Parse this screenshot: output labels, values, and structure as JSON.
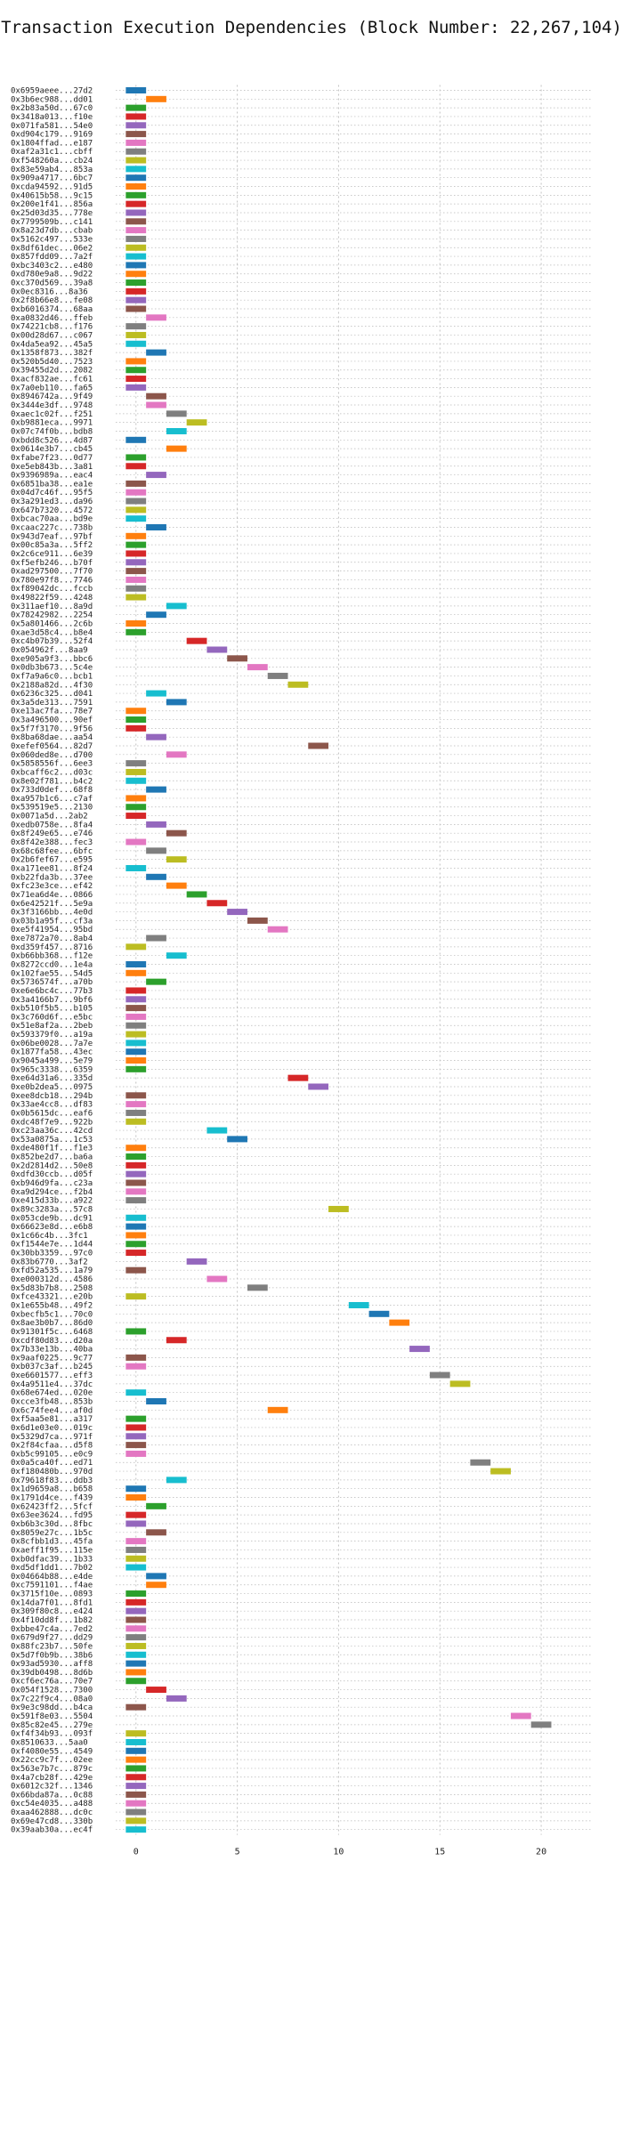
{
  "chart_data": {
    "type": "bar",
    "orientation": "horizontal",
    "title": "Transaction Execution Dependencies (Block Number: 22,267,104)",
    "xlabel": "",
    "ylabel": "",
    "xlim": [
      -1,
      22.5
    ],
    "xticks": [
      0,
      5,
      10,
      15,
      20
    ],
    "grid": true,
    "bar_width": 1,
    "colors": [
      "#1f77b4",
      "#ff7f0e",
      "#2ca02c",
      "#d62728",
      "#9467bd",
      "#8c564b",
      "#e377c2",
      "#7f7f7f",
      "#bcbd22",
      "#17becf"
    ],
    "rows": [
      {
        "tx": "0x6959aeee...27d2",
        "start": 0
      },
      {
        "tx": "0x3b6ec988...dd01",
        "start": 1
      },
      {
        "tx": "0x2b83a50d...67c0",
        "start": 0
      },
      {
        "tx": "0x3418a013...f10e",
        "start": 0
      },
      {
        "tx": "0x071fa581...54e0",
        "start": 0
      },
      {
        "tx": "0xd904c179...9169",
        "start": 0
      },
      {
        "tx": "0x1804ffad...e187",
        "start": 0
      },
      {
        "tx": "0xaf2a31c1...cbff",
        "start": 0
      },
      {
        "tx": "0xf548260a...cb24",
        "start": 0
      },
      {
        "tx": "0x83e59ab4...853a",
        "start": 0
      },
      {
        "tx": "0x909a4717...6bc7",
        "start": 0
      },
      {
        "tx": "0xcda94592...91d5",
        "start": 0
      },
      {
        "tx": "0x40615b58...9c15",
        "start": 0
      },
      {
        "tx": "0x200e1f41...856a",
        "start": 0
      },
      {
        "tx": "0x25d03d35...778e",
        "start": 0
      },
      {
        "tx": "0x7799509b...c141",
        "start": 0
      },
      {
        "tx": "0x8a23d7db...cbab",
        "start": 0
      },
      {
        "tx": "0x5162c497...533e",
        "start": 0
      },
      {
        "tx": "0x8df61dec...06e2",
        "start": 0
      },
      {
        "tx": "0x857fdd09...7a2f",
        "start": 0
      },
      {
        "tx": "0xbc3403c2...e480",
        "start": 0
      },
      {
        "tx": "0xd780e9a8...9d22",
        "start": 0
      },
      {
        "tx": "0xc370d569...39a8",
        "start": 0
      },
      {
        "tx": "0x0ec8316...8a36",
        "start": 0
      },
      {
        "tx": "0x2f8b66e8...fe08",
        "start": 0
      },
      {
        "tx": "0xb6016374...68aa",
        "start": 0
      },
      {
        "tx": "0xa0832d46...ffeb",
        "start": 1
      },
      {
        "tx": "0x74221cb8...f176",
        "start": 0
      },
      {
        "tx": "0x00d28d67...c067",
        "start": 0
      },
      {
        "tx": "0x4da5ea92...45a5",
        "start": 0
      },
      {
        "tx": "0x1358f873...382f",
        "start": 1
      },
      {
        "tx": "0x520b5d40...7523",
        "start": 0
      },
      {
        "tx": "0x39455d2d...2082",
        "start": 0
      },
      {
        "tx": "0xacf832ae...fc61",
        "start": 0
      },
      {
        "tx": "0x7a0eb110...fa65",
        "start": 0
      },
      {
        "tx": "0x8946742a...9f49",
        "start": 1
      },
      {
        "tx": "0x3444e3df...9748",
        "start": 1
      },
      {
        "tx": "0xaec1c02f...f251",
        "start": 2
      },
      {
        "tx": "0xb9881eca...9971",
        "start": 3
      },
      {
        "tx": "0x07c74f0b...bdb8",
        "start": 2
      },
      {
        "tx": "0xbdd8c526...4d87",
        "start": 0
      },
      {
        "tx": "0x0614e3b7...cb45",
        "start": 2
      },
      {
        "tx": "0xfabe7f23...0d77",
        "start": 0
      },
      {
        "tx": "0xe5eb843b...3a81",
        "start": 0
      },
      {
        "tx": "0x9396989a...eac4",
        "start": 1
      },
      {
        "tx": "0x6851ba38...ea1e",
        "start": 0
      },
      {
        "tx": "0x04d7c46f...95f5",
        "start": 0
      },
      {
        "tx": "0x3a291ed3...da96",
        "start": 0
      },
      {
        "tx": "0x647b7320...4572",
        "start": 0
      },
      {
        "tx": "0xbcac70aa...bd9e",
        "start": 0
      },
      {
        "tx": "0xcaac227c...738b",
        "start": 1
      },
      {
        "tx": "0x943d7eaf...97bf",
        "start": 0
      },
      {
        "tx": "0x00c85a3a...5ff2",
        "start": 0
      },
      {
        "tx": "0x2c6ce911...6e39",
        "start": 0
      },
      {
        "tx": "0xf5efb246...b70f",
        "start": 0
      },
      {
        "tx": "0xad297500...7f70",
        "start": 0
      },
      {
        "tx": "0x780e97f8...7746",
        "start": 0
      },
      {
        "tx": "0xf89042dc...fccb",
        "start": 0
      },
      {
        "tx": "0x49822f59...4248",
        "start": 0
      },
      {
        "tx": "0x311aef10...8a9d",
        "start": 2
      },
      {
        "tx": "0x78242982...2254",
        "start": 1
      },
      {
        "tx": "0x5a801466...2c6b",
        "start": 0
      },
      {
        "tx": "0xae3d58c4...b8e4",
        "start": 0
      },
      {
        "tx": "0xc4b07b39...52f4",
        "start": 3
      },
      {
        "tx": "0x054962f...8aa9",
        "start": 4
      },
      {
        "tx": "0xe905a9f3...bbc6",
        "start": 5
      },
      {
        "tx": "0x0db3b673...5c4e",
        "start": 6
      },
      {
        "tx": "0xf7a9a6c0...bcb1",
        "start": 7
      },
      {
        "tx": "0x2188a82d...4f30",
        "start": 8
      },
      {
        "tx": "0x6236c325...d041",
        "start": 1
      },
      {
        "tx": "0x3a5de313...7591",
        "start": 2
      },
      {
        "tx": "0xe13ac7fa...78e7",
        "start": 0
      },
      {
        "tx": "0x3a496500...90ef",
        "start": 0
      },
      {
        "tx": "0x5f7f3170...9f56",
        "start": 0
      },
      {
        "tx": "0x8ba68dae...aa54",
        "start": 1
      },
      {
        "tx": "0xefef0564...82d7",
        "start": 9
      },
      {
        "tx": "0x060ded8e...d700",
        "start": 2
      },
      {
        "tx": "0x5858556f...6ee3",
        "start": 0
      },
      {
        "tx": "0xbcaff6c2...d03c",
        "start": 0
      },
      {
        "tx": "0x8e02f781...b4c2",
        "start": 0
      },
      {
        "tx": "0x733d0def...68f8",
        "start": 1
      },
      {
        "tx": "0xa957b1c6...c7af",
        "start": 0
      },
      {
        "tx": "0x539519e5...2130",
        "start": 0
      },
      {
        "tx": "0x0071a5d...2ab2",
        "start": 0
      },
      {
        "tx": "0xedb0758e...8fa4",
        "start": 1
      },
      {
        "tx": "0x8f249e65...e746",
        "start": 2
      },
      {
        "tx": "0x8f42e388...fec3",
        "start": 0
      },
      {
        "tx": "0x68c68fee...6bfc",
        "start": 1
      },
      {
        "tx": "0x2b6fef67...e595",
        "start": 2
      },
      {
        "tx": "0xa171ee81...8f24",
        "start": 0
      },
      {
        "tx": "0xb22fda3b...37ee",
        "start": 1
      },
      {
        "tx": "0xfc23e3ce...ef42",
        "start": 2
      },
      {
        "tx": "0x71ea6d4e...0866",
        "start": 3
      },
      {
        "tx": "0x6e42521f...5e9a",
        "start": 4
      },
      {
        "tx": "0x3f3166bb...4e0d",
        "start": 5
      },
      {
        "tx": "0x03b1a95f...cf3a",
        "start": 6
      },
      {
        "tx": "0xe5f41954...95bd",
        "start": 7
      },
      {
        "tx": "0xe7872a70...8ab4",
        "start": 1
      },
      {
        "tx": "0xd359f457...8716",
        "start": 0
      },
      {
        "tx": "0xb66bb368...f12e",
        "start": 2
      },
      {
        "tx": "0x8272ccd0...1e4a",
        "start": 0
      },
      {
        "tx": "0x102fae55...54d5",
        "start": 0
      },
      {
        "tx": "0x5736574f...a70b",
        "start": 1
      },
      {
        "tx": "0xe6e6bc4c...77b3",
        "start": 0
      },
      {
        "tx": "0x3a4166b7...9bf6",
        "start": 0
      },
      {
        "tx": "0xb510f5b5...b105",
        "start": 0
      },
      {
        "tx": "0x3c760d6f...e5bc",
        "start": 0
      },
      {
        "tx": "0x51e8af2a...2beb",
        "start": 0
      },
      {
        "tx": "0x593379f0...a19a",
        "start": 0
      },
      {
        "tx": "0x06be0028...7a7e",
        "start": 0
      },
      {
        "tx": "0x1877fa58...43ec",
        "start": 0
      },
      {
        "tx": "0x9045a499...5e79",
        "start": 0
      },
      {
        "tx": "0x965c3338...6359",
        "start": 0
      },
      {
        "tx": "0xe64d31a6...335d",
        "start": 8
      },
      {
        "tx": "0xe0b2dea5...0975",
        "start": 9
      },
      {
        "tx": "0xee8dcb18...294b",
        "start": 0
      },
      {
        "tx": "0x33ae4cc8...df83",
        "start": 0
      },
      {
        "tx": "0x0b5615dc...eaf6",
        "start": 0
      },
      {
        "tx": "0xdc48f7e9...922b",
        "start": 0
      },
      {
        "tx": "0xc23aa36c...42cd",
        "start": 4
      },
      {
        "tx": "0x53a0875a...1c53",
        "start": 5
      },
      {
        "tx": "0xde480f1f...f1e3",
        "start": 0
      },
      {
        "tx": "0x852be2d7...ba6a",
        "start": 0
      },
      {
        "tx": "0x2d2814d2...50e8",
        "start": 0
      },
      {
        "tx": "0xdfd30ccb...d05f",
        "start": 0
      },
      {
        "tx": "0xb946d9fa...c23a",
        "start": 0
      },
      {
        "tx": "0xa9d294ce...f2b4",
        "start": 0
      },
      {
        "tx": "0xe415d33b...a922",
        "start": 0
      },
      {
        "tx": "0x89c3283a...57c8",
        "start": 10
      },
      {
        "tx": "0x053cde9b...dc91",
        "start": 0
      },
      {
        "tx": "0x66623e8d...e6b8",
        "start": 0
      },
      {
        "tx": "0x1c66c4b...3fc1",
        "start": 0
      },
      {
        "tx": "0xf1544e7e...1d44",
        "start": 0
      },
      {
        "tx": "0x30bb3359...97c0",
        "start": 0
      },
      {
        "tx": "0x83b6770...3af2",
        "start": 3
      },
      {
        "tx": "0xfd52a535...1a79",
        "start": 0
      },
      {
        "tx": "0xe000312d...4586",
        "start": 4
      },
      {
        "tx": "0x5d83b7b8...2508",
        "start": 6
      },
      {
        "tx": "0xfce43321...e20b",
        "start": 0
      },
      {
        "tx": "0x1e655b48...49f2",
        "start": 11
      },
      {
        "tx": "0xbecfb5c1...70c0",
        "start": 12
      },
      {
        "tx": "0x8ae3b0b7...86d0",
        "start": 13
      },
      {
        "tx": "0x91301f5c...6468",
        "start": 0
      },
      {
        "tx": "0xcdf80d83...d20a",
        "start": 2
      },
      {
        "tx": "0x7b33e13b...40ba",
        "start": 14
      },
      {
        "tx": "0x9aaf0225...9c77",
        "start": 0
      },
      {
        "tx": "0xb037c3af...b245",
        "start": 0
      },
      {
        "tx": "0xe6601577...eff3",
        "start": 15
      },
      {
        "tx": "0x4a9511e4...37dc",
        "start": 16
      },
      {
        "tx": "0x68e674ed...020e",
        "start": 0
      },
      {
        "tx": "0xcce3fb48...853b",
        "start": 1
      },
      {
        "tx": "0x6c74fee4...af0d",
        "start": 7
      },
      {
        "tx": "0xf5aa5e81...a317",
        "start": 0
      },
      {
        "tx": "0x6d1e03e0...019c",
        "start": 0
      },
      {
        "tx": "0x5329d7ca...971f",
        "start": 0
      },
      {
        "tx": "0x2f84cfaa...d5f8",
        "start": 0
      },
      {
        "tx": "0xb5c99105...e0c9",
        "start": 0
      },
      {
        "tx": "0x0a5ca40f...ed71",
        "start": 17
      },
      {
        "tx": "0xf180480b...970d",
        "start": 18
      },
      {
        "tx": "0x79618f83...ddb3",
        "start": 2
      },
      {
        "tx": "0x1d9659a8...b658",
        "start": 0
      },
      {
        "tx": "0x1791d4ce...f439",
        "start": 0
      },
      {
        "tx": "0x62423ff2...5fcf",
        "start": 1
      },
      {
        "tx": "0x63ee3624...fd95",
        "start": 0
      },
      {
        "tx": "0xb6b3c30d...8fbc",
        "start": 0
      },
      {
        "tx": "0x8059e27c...1b5c",
        "start": 1
      },
      {
        "tx": "0x8cfbb1d3...45fa",
        "start": 0
      },
      {
        "tx": "0xaeff1f95...115e",
        "start": 0
      },
      {
        "tx": "0xb0dfac39...1b33",
        "start": 0
      },
      {
        "tx": "0xd5df1dd1...7b02",
        "start": 0
      },
      {
        "tx": "0x04664b88...e4de",
        "start": 1
      },
      {
        "tx": "0xc7591101...f4ae",
        "start": 1
      },
      {
        "tx": "0x3715f10e...0893",
        "start": 0
      },
      {
        "tx": "0x14da7f01...8fd1",
        "start": 0
      },
      {
        "tx": "0x309f80c8...e424",
        "start": 0
      },
      {
        "tx": "0x4f10dd8f...1b82",
        "start": 0
      },
      {
        "tx": "0xbbe47c4a...7ed2",
        "start": 0
      },
      {
        "tx": "0x679d9f27...dd29",
        "start": 0
      },
      {
        "tx": "0x88fc23b7...50fe",
        "start": 0
      },
      {
        "tx": "0x5d7f0b9b...38b6",
        "start": 0
      },
      {
        "tx": "0x93ad5930...aff8",
        "start": 0
      },
      {
        "tx": "0x39db0498...8d6b",
        "start": 0
      },
      {
        "tx": "0xcf6ec76a...70e7",
        "start": 0
      },
      {
        "tx": "0x054f1528...7300",
        "start": 1
      },
      {
        "tx": "0x7c22f9c4...08a0",
        "start": 2
      },
      {
        "tx": "0x9e3c98dd...b4ca",
        "start": 0
      },
      {
        "tx": "0x591f8e03...5504",
        "start": 19
      },
      {
        "tx": "0x85c82e45...279e",
        "start": 20
      },
      {
        "tx": "0xf4f34b93...093f",
        "start": 0
      },
      {
        "tx": "0x8510633...5aa0",
        "start": 0
      },
      {
        "tx": "0xf4080e55...4549",
        "start": 0
      },
      {
        "tx": "0x22cc9c7f...02ee",
        "start": 0
      },
      {
        "tx": "0x563e7b7c...879c",
        "start": 0
      },
      {
        "tx": "0x4a7cb28f...429e",
        "start": 0
      },
      {
        "tx": "0x6012c32f...1346",
        "start": 0
      },
      {
        "tx": "0x66bda87a...0c88",
        "start": 0
      },
      {
        "tx": "0xc54e4035...a488",
        "start": 0
      },
      {
        "tx": "0xaa462888...dc0c",
        "start": 0
      },
      {
        "tx": "0x69e47cd8...330b",
        "start": 0
      },
      {
        "tx": "0x39aab30a...ec4f",
        "start": 0
      }
    ]
  }
}
